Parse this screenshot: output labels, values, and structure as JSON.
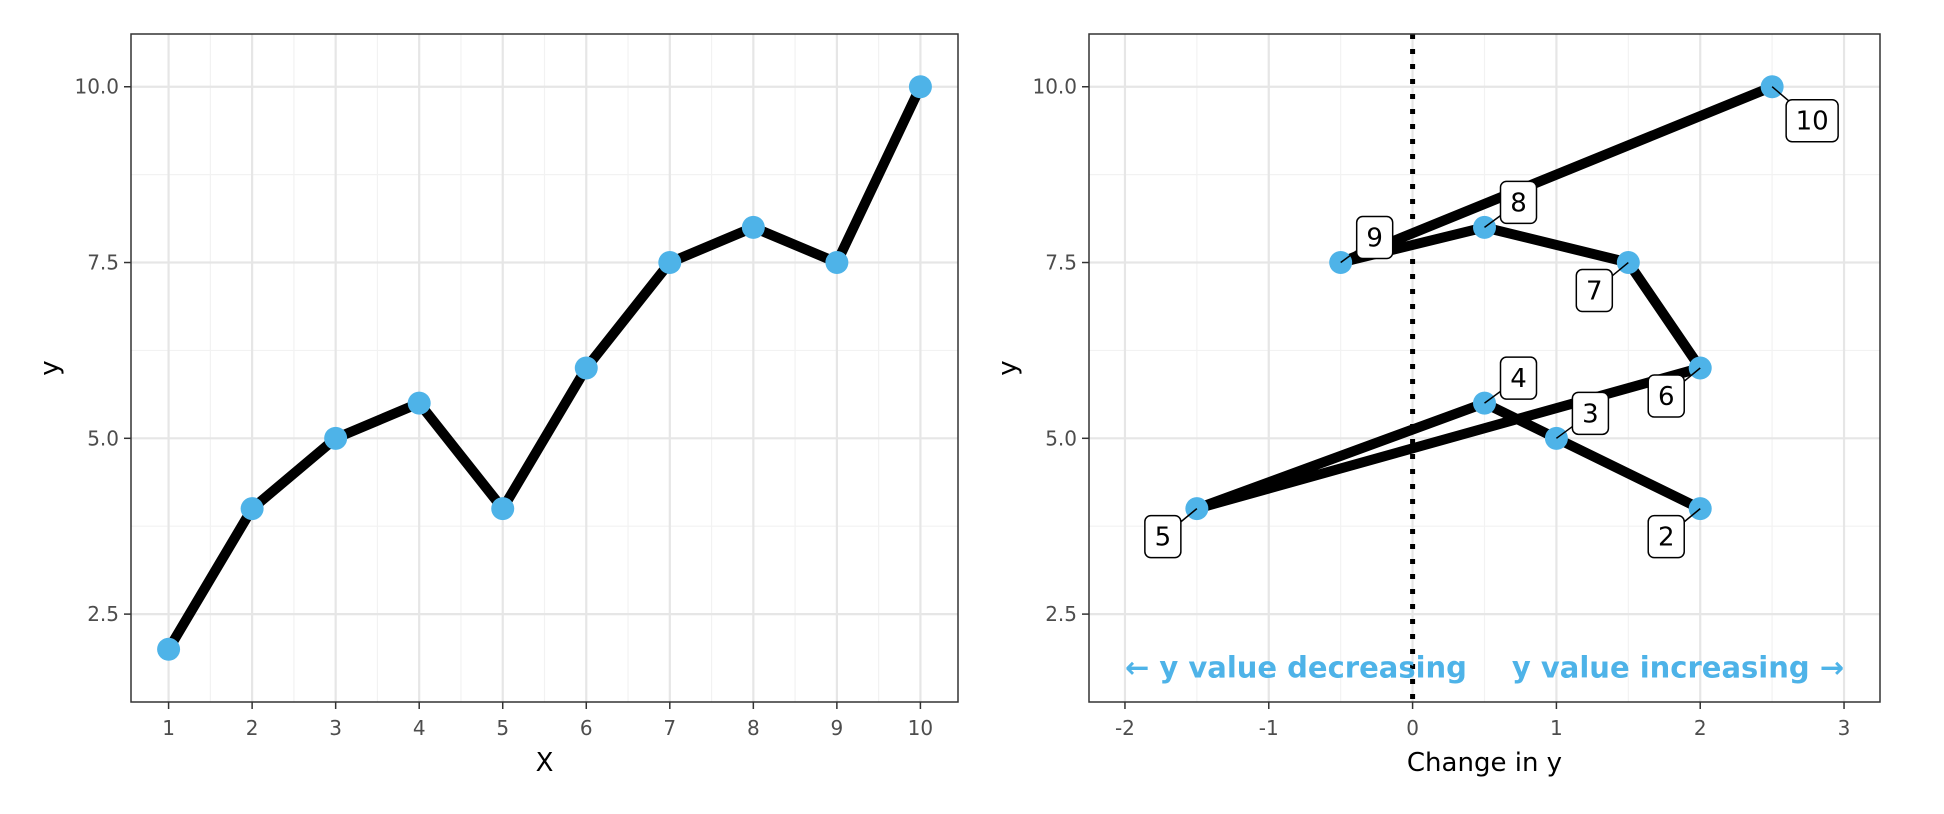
{
  "colors": {
    "point": "#4eb3e8",
    "line": "#000000",
    "annotation": "#4eb3e8",
    "grid_major": "#e6e6e6",
    "grid_minor": "#f2f2f2",
    "panel_border": "#333333"
  },
  "chart_data": [
    {
      "type": "line",
      "xlabel": "X",
      "ylabel": "y",
      "xlim": [
        0.55,
        10.45
      ],
      "ylim": [
        1.25,
        10.75
      ],
      "x_ticks": [
        1,
        2,
        3,
        4,
        5,
        6,
        7,
        8,
        9,
        10
      ],
      "x_tick_labels": [
        "1",
        "2",
        "3",
        "4",
        "5",
        "6",
        "7",
        "8",
        "9",
        "10"
      ],
      "y_ticks": [
        2.5,
        5.0,
        7.5,
        10.0
      ],
      "y_tick_labels": [
        "2.5",
        "5.0",
        "7.5",
        "10.0"
      ],
      "grid": true,
      "series": [
        {
          "x": [
            1,
            2,
            3,
            4,
            5,
            6,
            7,
            8,
            9,
            10
          ],
          "y": [
            2.0,
            4.0,
            5.0,
            5.5,
            4.0,
            6.0,
            7.5,
            8.0,
            7.5,
            10.0
          ]
        }
      ]
    },
    {
      "type": "line",
      "xlabel": "Change in y",
      "ylabel": "y",
      "xlim": [
        -2.25,
        3.25
      ],
      "ylim": [
        1.25,
        10.75
      ],
      "x_ticks": [
        -2,
        -1,
        0,
        1,
        2,
        3
      ],
      "x_tick_labels": [
        "-2",
        "-1",
        "0",
        "1",
        "2",
        "3"
      ],
      "y_ticks": [
        2.5,
        5.0,
        7.5,
        10.0
      ],
      "y_tick_labels": [
        "2.5",
        "5.0",
        "7.5",
        "10.0"
      ],
      "grid": true,
      "reference_line_x": 0,
      "series": [
        {
          "x": [
            2.0,
            1.0,
            0.5,
            -1.5,
            2.0,
            1.5,
            0.5,
            -0.5,
            2.5
          ],
          "y": [
            4.0,
            5.0,
            5.5,
            4.0,
            6.0,
            7.5,
            8.0,
            7.5,
            10.0
          ]
        }
      ],
      "point_labels": [
        {
          "text": "2",
          "x": 2.0,
          "y": 4.0,
          "placement": "bottom-left"
        },
        {
          "text": "3",
          "x": 1.0,
          "y": 5.0,
          "placement": "top-right"
        },
        {
          "text": "4",
          "x": 0.5,
          "y": 5.5,
          "placement": "top-right"
        },
        {
          "text": "5",
          "x": -1.5,
          "y": 4.0,
          "placement": "bottom-left"
        },
        {
          "text": "6",
          "x": 2.0,
          "y": 6.0,
          "placement": "bottom-left"
        },
        {
          "text": "7",
          "x": 1.5,
          "y": 7.5,
          "placement": "bottom-left"
        },
        {
          "text": "8",
          "x": 0.5,
          "y": 8.0,
          "placement": "top-right"
        },
        {
          "text": "9",
          "x": -0.5,
          "y": 7.5,
          "placement": "top-right"
        },
        {
          "text": "10",
          "x": 2.5,
          "y": 10.0,
          "placement": "bottom-right"
        }
      ],
      "annotations": [
        {
          "text": "← y value decreasing",
          "x": -2.0,
          "y": 1.6,
          "anchor": "start"
        },
        {
          "text": "y value increasing →",
          "x": 3.0,
          "y": 1.6,
          "anchor": "end"
        }
      ]
    }
  ]
}
